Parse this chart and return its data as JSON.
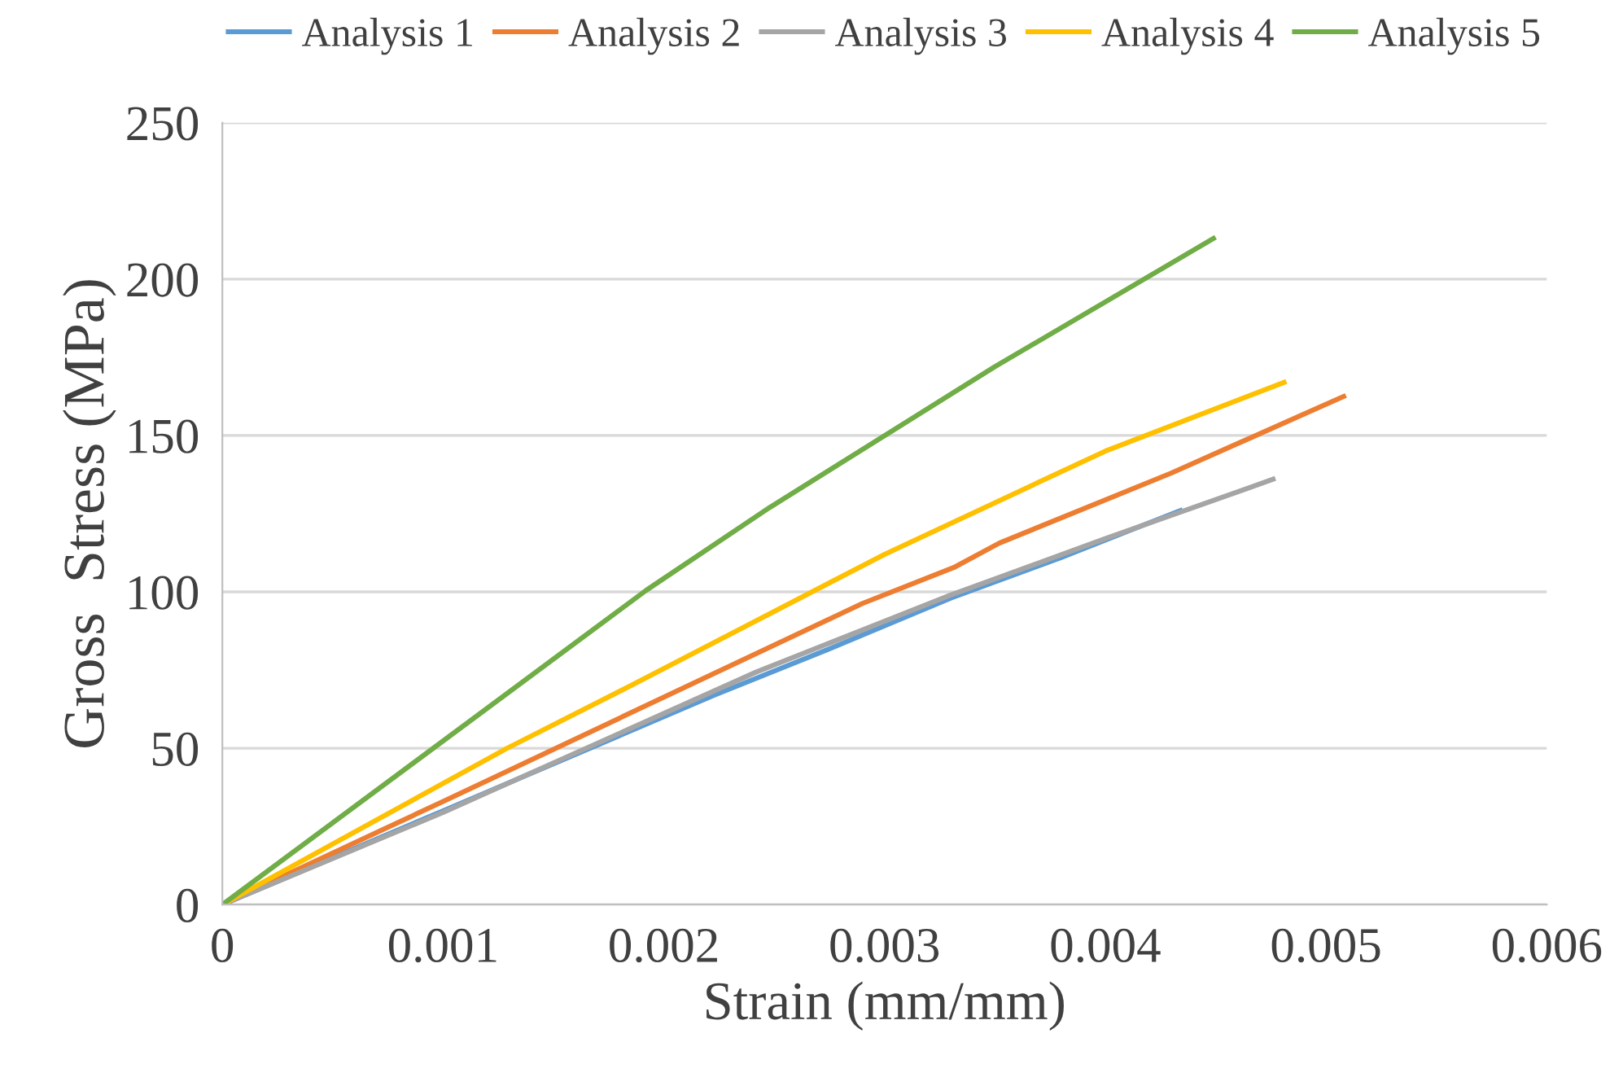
{
  "chart_data": {
    "type": "line",
    "xlabel": "Strain (mm/mm)",
    "ylabel": "Gross  Stress (MPa)",
    "xlim": [
      0,
      0.006
    ],
    "xticks": [
      0,
      0.001,
      0.002,
      0.003,
      0.004,
      0.005,
      0.006
    ],
    "ylim": [
      0,
      250
    ],
    "yticks": [
      0,
      50,
      100,
      150,
      200,
      250
    ],
    "grid": "y",
    "legend": "top",
    "marker": "none",
    "line_style": "solid",
    "series": [
      {
        "name": "Analysis 1",
        "color": "#5b9bd5",
        "x": [
          0,
          0.001,
          0.00223,
          0.00274,
          0.0033,
          0.0038,
          0.00434
        ],
        "values": [
          0,
          30,
          67,
          81.5,
          98,
          111,
          126
        ]
      },
      {
        "name": "Analysis 2",
        "color": "#ed7d31",
        "x": [
          0,
          0.001,
          0.0029,
          0.00332,
          0.00352,
          0.0043,
          0.00508
        ],
        "values": [
          0,
          33,
          96.3,
          108,
          115.6,
          138,
          162.5
        ]
      },
      {
        "name": "Analysis 3",
        "color": "#a5a5a5",
        "x": [
          0,
          0.001,
          0.00242,
          0.0033,
          0.004,
          0.00476
        ],
        "values": [
          0,
          29.5,
          74.4,
          99,
          117,
          136
        ]
      },
      {
        "name": "Analysis 4",
        "color": "#ffc000",
        "x": [
          0,
          0.00129,
          0.00185,
          0.003,
          0.004,
          0.00481
        ],
        "values": [
          0,
          50,
          70,
          112,
          145,
          167
        ]
      },
      {
        "name": "Analysis 5",
        "color": "#70ad47",
        "x": [
          0,
          0.00192,
          0.00248,
          0.0035,
          0.00449
        ],
        "values": [
          0,
          100.5,
          127,
          172,
          213
        ]
      }
    ]
  }
}
